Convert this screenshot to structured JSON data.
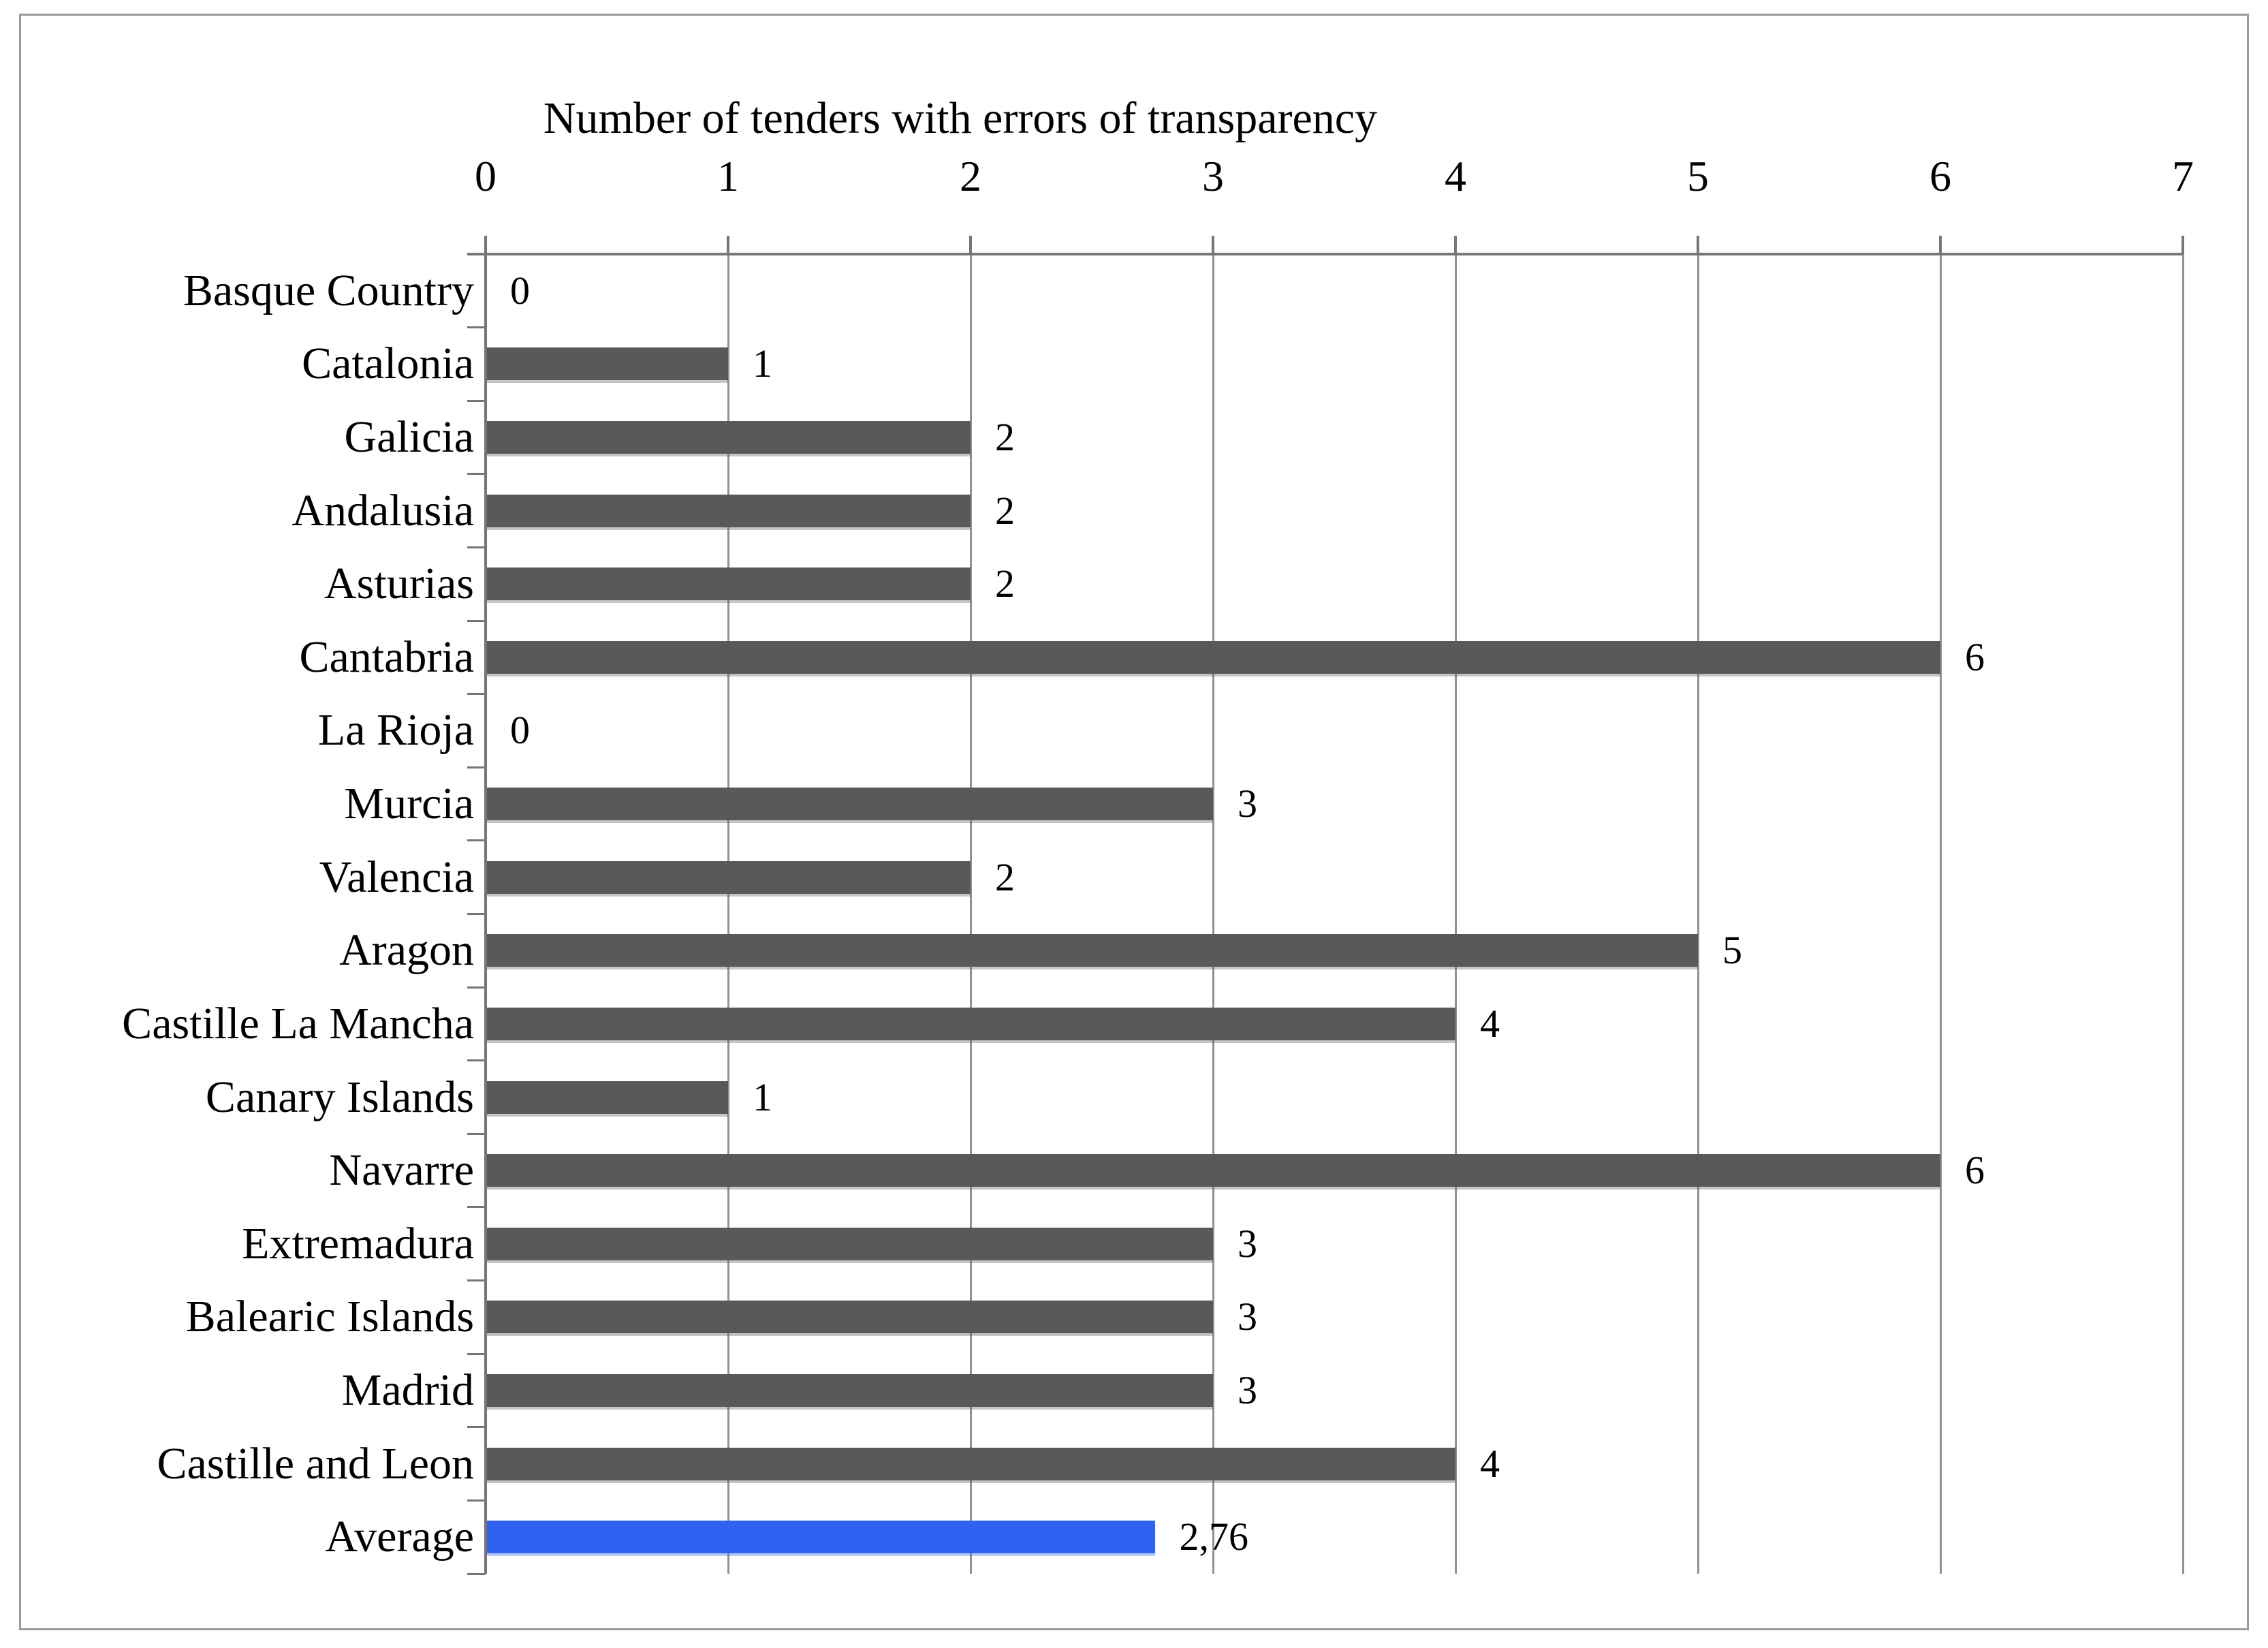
{
  "chart_data": {
    "type": "bar",
    "orientation": "horizontal",
    "title": "Number of tenders with errors of transparency",
    "categories": [
      "Basque Country",
      "Catalonia",
      "Galicia",
      "Andalusia",
      "Asturias",
      "Cantabria",
      "La Rioja",
      "Murcia",
      "Valencia",
      "Aragon",
      "Castille La Mancha",
      "Canary Islands",
      "Navarre",
      "Extremadura",
      "Balearic Islands",
      "Madrid",
      "Castille and Leon",
      "Average"
    ],
    "values": [
      0,
      1,
      2,
      2,
      2,
      6,
      0,
      3,
      2,
      5,
      4,
      1,
      6,
      3,
      3,
      3,
      4,
      2.76
    ],
    "value_labels": [
      "0",
      "1",
      "2",
      "2",
      "2",
      "6",
      "0",
      "3",
      "2",
      "5",
      "4",
      "1",
      "6",
      "3",
      "3",
      "3",
      "4",
      "2,76"
    ],
    "highlight_category": "Average",
    "xlabel": "",
    "ylabel": "",
    "xlim": [
      0,
      7
    ],
    "x_ticks": [
      "0",
      "1",
      "2",
      "3",
      "4",
      "5",
      "6",
      "7"
    ],
    "grid": "vertical gridlines at each integer",
    "legend": "none",
    "bar_color": "#595959",
    "highlight_bar_color": "#2F62F2"
  },
  "colors": {
    "bar_gray": "#595959",
    "bar_blue": "#2F62F2",
    "gridline": "#919191",
    "axis": "#767676",
    "figure_border": "#9A9A9A",
    "background": "#FFFFFF",
    "text": "#000000"
  }
}
